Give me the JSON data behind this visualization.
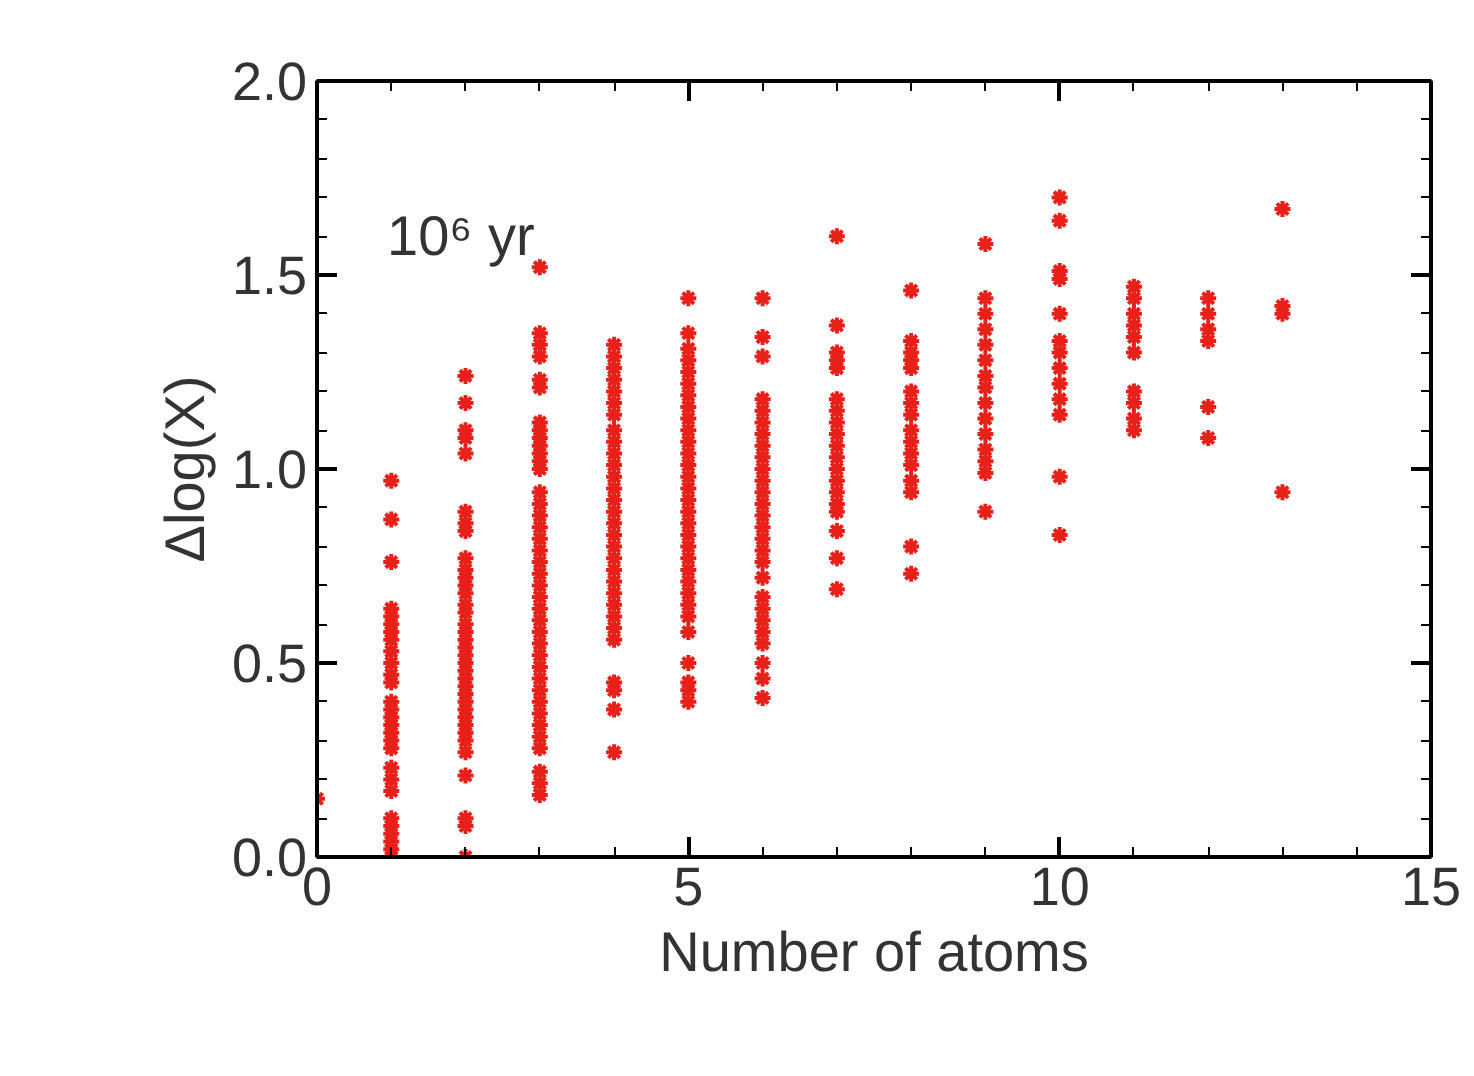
{
  "chart_data": {
    "type": "scatter",
    "xlabel": "Number of atoms",
    "ylabel": "Δlog(X)",
    "annotations": [
      "10⁶ yr"
    ],
    "xlim": [
      0,
      15
    ],
    "xticks": [
      0,
      5,
      10,
      15
    ],
    "ylim": [
      0,
      2
    ],
    "yticks": [
      {
        "value": 0,
        "label": "0.0"
      },
      {
        "value": 0.5,
        "label": "0.5"
      },
      {
        "value": 1,
        "label": "1.0"
      },
      {
        "value": 1.5,
        "label": "1.5"
      },
      {
        "value": 2,
        "label": "2.0"
      }
    ],
    "grid": false,
    "marker": "cross",
    "series": [
      {
        "color": "#e8201a",
        "x": [
          0,
          1,
          1,
          1,
          1,
          1,
          1,
          1,
          1,
          1,
          1,
          1,
          1,
          1,
          1,
          1,
          1,
          1,
          1,
          1,
          1,
          1,
          1,
          1,
          1,
          1,
          1,
          1,
          1,
          2,
          2,
          2,
          2,
          2,
          2,
          2,
          2,
          2,
          2,
          2,
          2,
          2,
          2,
          2,
          2,
          2,
          2,
          2,
          2,
          2,
          2,
          2,
          2,
          2,
          2,
          2,
          2,
          2,
          2,
          2,
          2,
          2,
          2,
          2,
          2,
          3,
          3,
          3,
          3,
          3,
          3,
          3,
          3,
          3,
          3,
          3,
          3,
          3,
          3,
          3,
          3,
          3,
          3,
          3,
          3,
          3,
          3,
          3,
          3,
          3,
          3,
          3,
          3,
          3,
          3,
          3,
          3,
          3,
          3,
          3,
          3,
          3,
          3,
          3,
          4,
          4,
          4,
          4,
          4,
          4,
          4,
          4,
          4,
          4,
          4,
          4,
          4,
          4,
          4,
          4,
          4,
          4,
          4,
          4,
          4,
          4,
          4,
          4,
          4,
          4,
          4,
          4,
          4,
          4,
          5,
          5,
          5,
          5,
          5,
          5,
          5,
          5,
          5,
          5,
          5,
          5,
          5,
          5,
          5,
          5,
          5,
          5,
          5,
          5,
          5,
          5,
          5,
          5,
          5,
          5,
          5,
          5,
          5,
          5,
          5,
          6,
          6,
          6,
          6,
          6,
          6,
          6,
          6,
          6,
          6,
          6,
          6,
          6,
          6,
          6,
          6,
          6,
          6,
          6,
          6,
          6,
          6,
          6,
          6,
          6,
          6,
          6,
          7,
          7,
          7,
          7,
          7,
          7,
          7,
          7,
          7,
          7,
          7,
          7,
          7,
          7,
          7,
          7,
          7,
          7,
          7,
          8,
          8,
          8,
          8,
          8,
          8,
          8,
          8,
          8,
          8,
          8,
          8,
          8,
          8,
          8,
          8,
          9,
          9,
          9,
          9,
          9,
          9,
          9,
          9,
          9,
          9,
          9,
          9,
          9,
          9,
          9,
          10,
          10,
          10,
          10,
          10,
          10,
          10,
          10,
          10,
          10,
          10,
          10,
          10,
          11,
          11,
          11,
          11,
          11,
          11,
          11,
          11,
          11,
          11,
          12,
          12,
          12,
          12,
          12,
          12,
          13,
          13,
          13,
          13
        ],
        "values": [
          0.15,
          0.97,
          0.87,
          0.76,
          0.64,
          0.62,
          0.6,
          0.58,
          0.56,
          0.53,
          0.5,
          0.47,
          0.45,
          0.4,
          0.38,
          0.36,
          0.34,
          0.32,
          0.3,
          0.28,
          0.23,
          0.2,
          0.17,
          0.1,
          0.08,
          0.06,
          0.04,
          0.02,
          0.0,
          1.24,
          1.17,
          1.1,
          1.08,
          1.04,
          0.89,
          0.86,
          0.84,
          0.77,
          0.74,
          0.72,
          0.7,
          0.68,
          0.65,
          0.63,
          0.6,
          0.58,
          0.56,
          0.54,
          0.52,
          0.5,
          0.48,
          0.46,
          0.44,
          0.42,
          0.4,
          0.38,
          0.36,
          0.34,
          0.32,
          0.3,
          0.27,
          0.21,
          0.1,
          0.08,
          0.0,
          1.52,
          1.35,
          1.32,
          1.29,
          1.23,
          1.21,
          1.12,
          1.1,
          1.08,
          1.06,
          1.04,
          1.02,
          1.0,
          0.94,
          0.91,
          0.88,
          0.85,
          0.82,
          0.79,
          0.76,
          0.73,
          0.7,
          0.67,
          0.64,
          0.61,
          0.58,
          0.55,
          0.52,
          0.49,
          0.46,
          0.43,
          0.4,
          0.37,
          0.34,
          0.31,
          0.28,
          0.22,
          0.19,
          0.16,
          1.32,
          1.29,
          1.26,
          1.23,
          1.2,
          1.17,
          1.14,
          1.1,
          1.07,
          1.04,
          1.01,
          0.98,
          0.95,
          0.92,
          0.89,
          0.86,
          0.83,
          0.8,
          0.77,
          0.74,
          0.71,
          0.68,
          0.65,
          0.62,
          0.59,
          0.56,
          0.45,
          0.43,
          0.38,
          0.27,
          1.44,
          1.35,
          1.31,
          1.28,
          1.25,
          1.22,
          1.19,
          1.16,
          1.13,
          1.1,
          1.07,
          1.04,
          1.01,
          0.98,
          0.95,
          0.92,
          0.89,
          0.86,
          0.83,
          0.8,
          0.77,
          0.74,
          0.71,
          0.68,
          0.65,
          0.62,
          0.58,
          0.5,
          0.45,
          0.43,
          0.4,
          1.44,
          1.34,
          1.29,
          1.18,
          1.15,
          1.12,
          1.09,
          1.06,
          1.03,
          1.0,
          0.97,
          0.94,
          0.91,
          0.88,
          0.85,
          0.82,
          0.79,
          0.76,
          0.72,
          0.67,
          0.64,
          0.61,
          0.58,
          0.55,
          0.5,
          0.46,
          0.41,
          1.6,
          1.37,
          1.3,
          1.28,
          1.26,
          1.18,
          1.15,
          1.12,
          1.09,
          1.06,
          1.03,
          1.0,
          0.97,
          0.94,
          0.91,
          0.89,
          0.84,
          0.77,
          0.69,
          1.46,
          1.33,
          1.3,
          1.28,
          1.26,
          1.2,
          1.17,
          1.14,
          1.1,
          1.07,
          1.04,
          1.01,
          0.97,
          0.94,
          0.8,
          0.73,
          1.58,
          1.44,
          1.4,
          1.36,
          1.32,
          1.28,
          1.24,
          1.21,
          1.17,
          1.13,
          1.09,
          1.05,
          1.02,
          0.99,
          0.89,
          1.7,
          1.64,
          1.51,
          1.49,
          1.4,
          1.33,
          1.3,
          1.26,
          1.22,
          1.18,
          1.14,
          0.98,
          0.83,
          1.47,
          1.44,
          1.4,
          1.37,
          1.34,
          1.3,
          1.2,
          1.17,
          1.13,
          1.1,
          1.44,
          1.4,
          1.36,
          1.33,
          1.16,
          1.08,
          1.67,
          1.42,
          1.4,
          0.94
        ]
      }
    ]
  }
}
